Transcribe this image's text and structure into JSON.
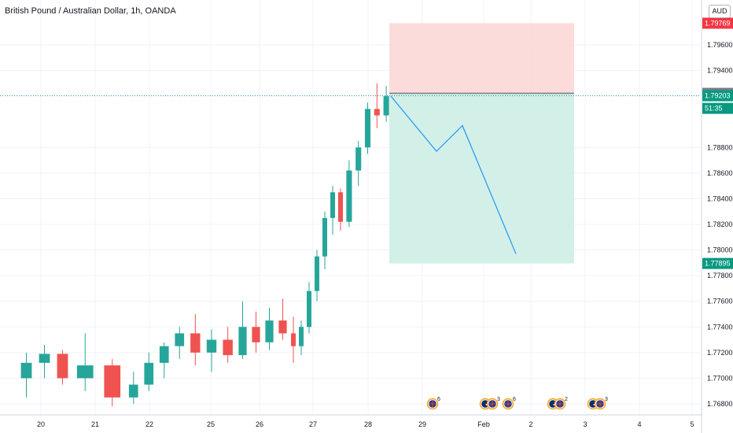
{
  "chart_title": "British Pound / Australian Dollar, 1h, OANDA",
  "currency": "AUD",
  "colors": {
    "up": "#26a69a",
    "down": "#ef5350",
    "stop_zone": "#fbd5d5",
    "target_zone": "#cdeee6",
    "projection": "#2196f3",
    "current_price_line": "#089981",
    "label_red": "#f23645",
    "label_gray": "#787b86",
    "label_green": "#089981"
  },
  "events": [
    {
      "date": "29",
      "icons": [
        "gb-flag-icon"
      ],
      "count": "6"
    },
    {
      "date": "Feb",
      "icons": [
        "au-flag-icon",
        "gb-flag-icon"
      ],
      "count": "3"
    },
    {
      "date": "Feb",
      "icons": [
        "gb-flag-icon"
      ],
      "count": "6"
    },
    {
      "date": "2",
      "icons": [
        "au-flag-icon",
        "gb-flag-icon"
      ],
      "count": "2"
    },
    {
      "date": "3",
      "icons": [
        "au-flag-icon",
        "gb-flag-icon"
      ],
      "count": "3"
    }
  ],
  "chart_data": {
    "type": "candlestick",
    "title": "British Pound / Australian Dollar, 1h, OANDA",
    "x_ticks": [
      "20",
      "21",
      "22",
      "25",
      "26",
      "27",
      "28",
      "29",
      "Feb",
      "2",
      "3",
      "4",
      "5"
    ],
    "y_ticks": [
      "1.76800",
      "1.77000",
      "1.77200",
      "1.77400",
      "1.77600",
      "1.77800",
      "1.78000",
      "1.78200",
      "1.78400",
      "1.78600",
      "1.78800",
      "1.79400",
      "1.79600"
    ],
    "ylim": [
      1.7672,
      1.7995
    ],
    "price_labels": [
      {
        "value": 1.79769,
        "text": "1.79769",
        "kind": "stop"
      },
      {
        "value": 1.79222,
        "text": "1.79222",
        "kind": "entry"
      },
      {
        "value": 1.79203,
        "text": "1.79203",
        "kind": "last"
      },
      {
        "text": "51:35",
        "kind": "countdown"
      },
      {
        "value": 1.77895,
        "text": "1.77895",
        "kind": "target"
      }
    ],
    "position": {
      "type": "short",
      "entry": 1.79222,
      "stop": 1.79769,
      "target": 1.77895,
      "start": "28",
      "end": "2"
    },
    "projection": [
      {
        "x": "28",
        "y": 1.792
      },
      {
        "x": "29",
        "y": 1.7877
      },
      {
        "x": "29",
        "y": 1.7897
      },
      {
        "x": "Feb",
        "y": 1.7797
      }
    ],
    "candles": [
      {
        "x": "20",
        "o": 1.77,
        "h": 1.772,
        "l": 1.7685,
        "c": 1.7712
      },
      {
        "x": "20",
        "o": 1.7712,
        "h": 1.7726,
        "l": 1.77,
        "c": 1.7719
      },
      {
        "x": "20",
        "o": 1.7719,
        "h": 1.7722,
        "l": 1.7695,
        "c": 1.77
      },
      {
        "x": "21",
        "o": 1.77,
        "h": 1.7735,
        "l": 1.769,
        "c": 1.771
      },
      {
        "x": "21",
        "o": 1.771,
        "h": 1.7715,
        "l": 1.7678,
        "c": 1.7685
      },
      {
        "x": "22",
        "o": 1.7685,
        "h": 1.7705,
        "l": 1.768,
        "c": 1.7695
      },
      {
        "x": "22",
        "o": 1.7695,
        "h": 1.772,
        "l": 1.769,
        "c": 1.7712
      },
      {
        "x": "22",
        "o": 1.7712,
        "h": 1.7728,
        "l": 1.77,
        "c": 1.7725
      },
      {
        "x": "22",
        "o": 1.7725,
        "h": 1.774,
        "l": 1.7715,
        "c": 1.7735
      },
      {
        "x": "25",
        "o": 1.7735,
        "h": 1.775,
        "l": 1.771,
        "c": 1.772
      },
      {
        "x": "25",
        "o": 1.772,
        "h": 1.7738,
        "l": 1.7705,
        "c": 1.773
      },
      {
        "x": "25",
        "o": 1.773,
        "h": 1.774,
        "l": 1.7712,
        "c": 1.7718
      },
      {
        "x": "26",
        "o": 1.7718,
        "h": 1.776,
        "l": 1.7715,
        "c": 1.774
      },
      {
        "x": "26",
        "o": 1.774,
        "h": 1.7752,
        "l": 1.772,
        "c": 1.7728
      },
      {
        "x": "26",
        "o": 1.7728,
        "h": 1.7755,
        "l": 1.7722,
        "c": 1.7745
      },
      {
        "x": "26",
        "o": 1.7745,
        "h": 1.7762,
        "l": 1.773,
        "c": 1.7735
      },
      {
        "x": "27",
        "o": 1.7735,
        "h": 1.7748,
        "l": 1.7712,
        "c": 1.7725
      },
      {
        "x": "27",
        "o": 1.7725,
        "h": 1.7745,
        "l": 1.7718,
        "c": 1.774
      },
      {
        "x": "27",
        "o": 1.774,
        "h": 1.7775,
        "l": 1.7735,
        "c": 1.7768
      },
      {
        "x": "27",
        "o": 1.7768,
        "h": 1.78,
        "l": 1.776,
        "c": 1.7795
      },
      {
        "x": "27",
        "o": 1.7795,
        "h": 1.783,
        "l": 1.7785,
        "c": 1.7825
      },
      {
        "x": "27",
        "o": 1.7825,
        "h": 1.785,
        "l": 1.7812,
        "c": 1.7845
      },
      {
        "x": "27",
        "o": 1.7845,
        "h": 1.7848,
        "l": 1.7815,
        "c": 1.7822
      },
      {
        "x": "28",
        "o": 1.7822,
        "h": 1.787,
        "l": 1.7818,
        "c": 1.7862
      },
      {
        "x": "28",
        "o": 1.7862,
        "h": 1.7885,
        "l": 1.785,
        "c": 1.788
      },
      {
        "x": "28",
        "o": 1.788,
        "h": 1.7915,
        "l": 1.7875,
        "c": 1.791
      },
      {
        "x": "28",
        "o": 1.791,
        "h": 1.793,
        "l": 1.7895,
        "c": 1.7905
      },
      {
        "x": "28",
        "o": 1.7905,
        "h": 1.7928,
        "l": 1.79,
        "c": 1.792
      }
    ]
  }
}
